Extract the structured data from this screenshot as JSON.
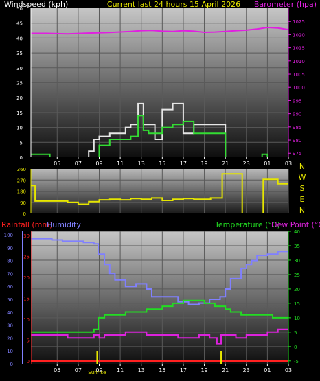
{
  "colors": {
    "wind_avg": "#33dd33",
    "wind_gust": "#e6e6e6",
    "barometer": "#e020e0",
    "direction": "#e6e600",
    "rainfall": "#ff2020",
    "humidity": "#8080ff",
    "temperature": "#22dd22",
    "dew_point": "#dd22dd",
    "sunrise": "#e6e600",
    "title": "#e6e600"
  },
  "chart_data": [
    {
      "type": "line",
      "title": "Current last 24 hours 15 April 2026",
      "ylabel": "Windspeed (kph)",
      "y2label": "Barometer (hpa)",
      "x_ticks": [
        "05",
        "07",
        "09",
        "11",
        "13",
        "15",
        "17",
        "19",
        "21",
        "23",
        "01",
        "03"
      ],
      "x_range_hours": [
        2.5,
        27.0
      ],
      "ylim": [
        0,
        50
      ],
      "y_ticks": [
        0,
        5,
        10,
        15,
        20,
        25,
        30,
        35,
        40,
        45,
        50
      ],
      "y2lim": [
        973.5,
        1030
      ],
      "y2_ticks": [
        975,
        980,
        985,
        990,
        995,
        1000,
        1005,
        1010,
        1015,
        1020,
        1025
      ],
      "series": [
        {
          "name": "Wind Gust",
          "axis": "y",
          "step": true,
          "x": [
            2.5,
            3.9,
            4.3,
            8.0,
            8.5,
            9.0,
            10.0,
            11.5,
            12.0,
            12.7,
            13.2,
            13.7,
            14.3,
            15.0,
            16.0,
            17.0,
            18.0,
            19.0,
            21.0,
            27.0
          ],
          "values": [
            0,
            0,
            0,
            2,
            6,
            7,
            8,
            10,
            11,
            18,
            11,
            11,
            6,
            16,
            18,
            8,
            11,
            11,
            0,
            0
          ]
        },
        {
          "name": "Wind Average",
          "axis": "y",
          "step": true,
          "x": [
            2.5,
            3.9,
            4.3,
            8.0,
            8.5,
            9.0,
            10.0,
            11.5,
            12.0,
            12.7,
            13.2,
            13.7,
            14.3,
            15.0,
            16.0,
            17.0,
            18.0,
            19.0,
            21.0,
            22.5,
            23.5,
            24.5,
            25.0,
            27.0
          ],
          "values": [
            1,
            1,
            0,
            0,
            0,
            4,
            6,
            6,
            7,
            14,
            9,
            8,
            8,
            10,
            11,
            12,
            8,
            8,
            0,
            0,
            0,
            1,
            0,
            0
          ]
        },
        {
          "name": "Barometer",
          "axis": "y2",
          "x": [
            2.5,
            4.0,
            6.0,
            8.0,
            10.0,
            12.0,
            13.0,
            14.0,
            15.0,
            16.0,
            17.0,
            18.0,
            19.0,
            20.0,
            21.0,
            22.0,
            23.0,
            24.0,
            25.0,
            26.0,
            27.0
          ],
          "values": [
            1020.5,
            1020.5,
            1020.3,
            1020.6,
            1020.8,
            1021.2,
            1021.5,
            1021.6,
            1021.3,
            1021.2,
            1021.5,
            1021.3,
            1020.9,
            1021.0,
            1021.2,
            1021.5,
            1021.7,
            1022.1,
            1022.7,
            1022.5,
            1021.9
          ]
        }
      ]
    },
    {
      "type": "line",
      "y_ticks": [
        0,
        90,
        180,
        270,
        360
      ],
      "ylim": [
        0,
        360
      ],
      "direction_labels": [
        "N",
        "W",
        "S",
        "E",
        "N"
      ],
      "series": [
        {
          "name": "Wind Direction",
          "step": true,
          "x": [
            2.5,
            2.9,
            3.0,
            6.0,
            7.0,
            8.0,
            9.0,
            10.0,
            11.0,
            12.0,
            13.0,
            14.0,
            15.0,
            16.0,
            17.0,
            18.0,
            18.5,
            19.0,
            19.6,
            20.7,
            22.6,
            24.6,
            26.0,
            27.0
          ],
          "values": [
            225,
            100,
            100,
            90,
            75,
            95,
            110,
            115,
            110,
            120,
            115,
            125,
            105,
            115,
            120,
            115,
            115,
            115,
            125,
            320,
            0,
            275,
            240,
            240
          ]
        }
      ]
    },
    {
      "type": "line",
      "ylabel_left_1": "Rainfall (mm)",
      "ylabel_left_2": "Humidity",
      "ylabel_right_1": "Temperature (°C)",
      "ylabel_right_2": "Dew Point (°C)",
      "x_ticks": [
        "05",
        "07",
        "09",
        "11",
        "13",
        "15",
        "17",
        "19",
        "21",
        "23",
        "01",
        "03"
      ],
      "humidity_ticks": [
        0,
        10,
        20,
        30,
        40,
        50,
        60,
        70,
        80,
        90,
        100
      ],
      "rain_ticks": [
        0,
        5,
        10,
        15,
        20,
        25,
        30
      ],
      "temp_ticks": [
        -5,
        0,
        5,
        10,
        15,
        20,
        25,
        30,
        35,
        40
      ],
      "ylim_humidity": [
        0,
        100
      ],
      "ylim_rain": [
        0,
        30
      ],
      "ylim_temp": [
        -6,
        40
      ],
      "sunrise_label": "Sunrise",
      "sunrise_hours": [
        8.8,
        20.6
      ],
      "series": [
        {
          "name": "Rainfall",
          "axis": "rain",
          "x": [
            2.5,
            27.0
          ],
          "values": [
            0,
            0
          ]
        },
        {
          "name": "Humidity",
          "axis": "humidity",
          "step": true,
          "x": [
            2.5,
            3.5,
            4.5,
            5.5,
            6.5,
            7.5,
            8.5,
            8.9,
            9.5,
            10.0,
            10.5,
            11.5,
            12.5,
            13.5,
            14.0,
            15.5,
            16.5,
            17.5,
            18.5,
            19.5,
            20.0,
            20.5,
            21.0,
            21.5,
            22.5,
            23.0,
            23.5,
            24.0,
            25.0,
            26.0,
            27.0
          ],
          "values": [
            97,
            97,
            96,
            95,
            95,
            94,
            93,
            85,
            77,
            70,
            65,
            60,
            62,
            58,
            52,
            52,
            48,
            46,
            47,
            50,
            50,
            52,
            58,
            66,
            74,
            77,
            80,
            84,
            85,
            87,
            87
          ]
        },
        {
          "name": "Temperature",
          "axis": "temp",
          "step": true,
          "x": [
            2.5,
            4.5,
            6.0,
            7.5,
            8.5,
            8.9,
            9.5,
            10.5,
            11.5,
            12.5,
            13.5,
            14.5,
            15.0,
            16.0,
            17.0,
            18.0,
            19.0,
            20.0,
            20.5,
            21.0,
            21.5,
            22.5,
            23.5,
            24.5,
            25.5,
            26.5,
            27.0
          ],
          "values": [
            5,
            5,
            5,
            5,
            6,
            10,
            11,
            11,
            12,
            12,
            13,
            13,
            14,
            15,
            16,
            16,
            15,
            14,
            14,
            13,
            12,
            11,
            11,
            11,
            10,
            10,
            10
          ]
        },
        {
          "name": "Dew Point",
          "axis": "temp",
          "step": true,
          "x": [
            2.5,
            4.5,
            6.0,
            7.5,
            8.5,
            9.0,
            9.5,
            10.5,
            11.5,
            12.5,
            13.5,
            14.5,
            15.5,
            16.5,
            17.5,
            18.5,
            19.5,
            20.0,
            20.2,
            20.6,
            21.0,
            22.0,
            23.0,
            24.0,
            25.0,
            26.0,
            27.0
          ],
          "values": [
            4,
            4,
            3,
            3,
            4,
            3,
            4,
            4,
            5,
            5,
            4,
            4,
            4,
            3,
            3,
            4,
            3,
            3,
            1,
            4,
            4,
            3,
            4,
            4,
            5,
            6,
            6
          ]
        }
      ]
    }
  ]
}
